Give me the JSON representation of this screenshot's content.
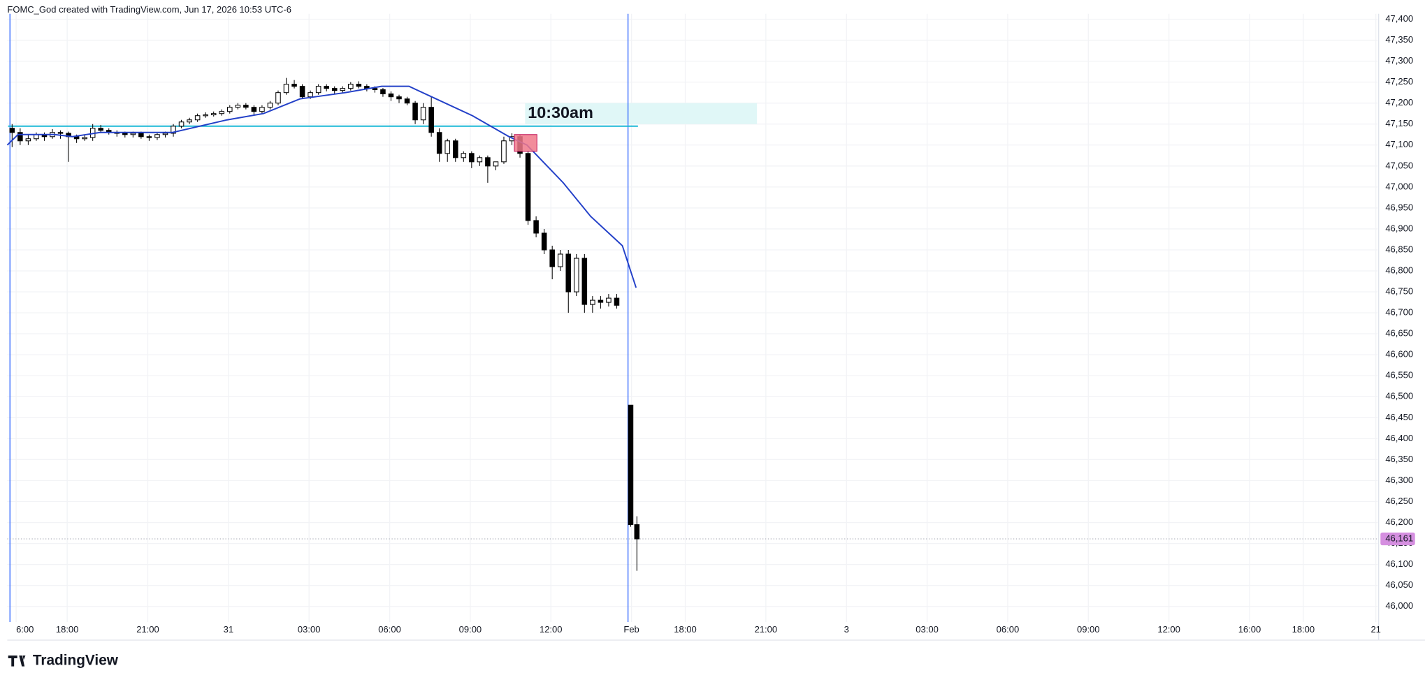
{
  "chart_data": {
    "type": "candlestick",
    "header": "FOMC_God created with TradingView.com, Jun 17, 2026 10:53 UTC-6",
    "watermark": "TradingView",
    "candles": {
      "up_color": "#ffffff",
      "down_color": "#000000",
      "x": [
        -2.05,
        -1.75,
        -1.45,
        -1.15,
        -0.85,
        -0.55,
        -0.25,
        0.05,
        0.35,
        0.65,
        0.95,
        1.25,
        1.55,
        1.85,
        2.15,
        2.45,
        2.75,
        3.05,
        3.35,
        3.65,
        3.95,
        4.25,
        4.55,
        4.85,
        5.15,
        5.45,
        5.75,
        6.05,
        6.35,
        6.65,
        6.95,
        7.25,
        7.55,
        7.85,
        8.15,
        8.45,
        8.75,
        9.05,
        9.35,
        9.65,
        9.95,
        10.25,
        10.55,
        10.85,
        11.15,
        11.45,
        11.75,
        12.05,
        12.35,
        12.65,
        12.95,
        13.25,
        13.55,
        13.85,
        14.15,
        14.45,
        14.75,
        15.05,
        15.35,
        15.65,
        15.95,
        16.25,
        16.55,
        16.85,
        17.15,
        17.45,
        17.75,
        18.05,
        18.35,
        18.65,
        18.95,
        19.25,
        19.55,
        19.85,
        20.15,
        20.45,
        20.97,
        21.2
      ],
      "open": [
        47140,
        47130,
        47110,
        47115,
        47125,
        47120,
        47130,
        47128,
        47120,
        47115,
        47118,
        47140,
        47135,
        47130,
        47128,
        47125,
        47128,
        47120,
        47118,
        47125,
        47128,
        47145,
        47155,
        47160,
        47170,
        47172,
        47175,
        47180,
        47190,
        47195,
        47190,
        47180,
        47190,
        47200,
        47225,
        47245,
        47240,
        47215,
        47225,
        47240,
        47235,
        47230,
        47235,
        47245,
        47240,
        47235,
        47232,
        47222,
        47215,
        47210,
        47200,
        47160,
        47190,
        47130,
        47080,
        47110,
        47070,
        47080,
        47060,
        47070,
        47050,
        47060,
        47110,
        47120,
        47080,
        46920,
        46890,
        46850,
        46810,
        46840,
        46750,
        46830,
        46720,
        46730,
        46725,
        46735,
        46480,
        46195
      ],
      "high": [
        47150,
        47140,
        47125,
        47130,
        47130,
        47138,
        47135,
        47132,
        47125,
        47125,
        47150,
        47148,
        47140,
        47135,
        47132,
        47132,
        47132,
        47125,
        47128,
        47132,
        47150,
        47160,
        47165,
        47175,
        47178,
        47180,
        47185,
        47195,
        47200,
        47200,
        47195,
        47195,
        47205,
        47230,
        47260,
        47255,
        47245,
        47230,
        47245,
        47245,
        47240,
        47240,
        47250,
        47252,
        47245,
        47240,
        47236,
        47228,
        47220,
        47215,
        47205,
        47200,
        47215,
        47140,
        47115,
        47115,
        47085,
        47085,
        47075,
        47075,
        47060,
        47120,
        47128,
        47125,
        47085,
        46930,
        46900,
        46860,
        46850,
        46850,
        46840,
        46840,
        46740,
        46740,
        46745,
        46745,
        46480,
        46215
      ],
      "low": [
        47095,
        47100,
        47100,
        47110,
        47110,
        47115,
        47115,
        47060,
        47105,
        47110,
        47110,
        47128,
        47125,
        47120,
        47118,
        47118,
        47115,
        47110,
        47112,
        47118,
        47120,
        47140,
        47150,
        47155,
        47165,
        47168,
        47170,
        47175,
        47185,
        47185,
        47170,
        47175,
        47185,
        47195,
        47220,
        47235,
        47210,
        47210,
        47220,
        47228,
        47222,
        47225,
        47230,
        47235,
        47228,
        47225,
        47215,
        47205,
        47200,
        47195,
        47150,
        47150,
        47120,
        47060,
        47060,
        47060,
        47060,
        47045,
        47050,
        47010,
        47040,
        47055,
        47100,
        47070,
        46910,
        46880,
        46840,
        46780,
        46800,
        46700,
        46740,
        46700,
        46700,
        46710,
        46715,
        46710,
        46190,
        46085
      ],
      "close": [
        47130,
        47110,
        47115,
        47125,
        47120,
        47130,
        47128,
        47120,
        47115,
        47118,
        47140,
        47135,
        47130,
        47128,
        47125,
        47128,
        47120,
        47118,
        47125,
        47128,
        47145,
        47155,
        47160,
        47170,
        47172,
        47175,
        47180,
        47190,
        47195,
        47190,
        47180,
        47190,
        47200,
        47225,
        47245,
        47240,
        47215,
        47225,
        47240,
        47235,
        47230,
        47235,
        47245,
        47240,
        47235,
        47232,
        47222,
        47215,
        47210,
        47200,
        47160,
        47190,
        47130,
        47080,
        47110,
        47070,
        47080,
        47060,
        47070,
        47050,
        47060,
        47110,
        47120,
        47080,
        46920,
        46890,
        46850,
        46810,
        46840,
        46750,
        46830,
        46720,
        46730,
        46725,
        46735,
        46718,
        46195,
        46161
      ]
    },
    "ema": {
      "color": "#2340c8",
      "x": [
        -2.23,
        -1.83,
        -0.47,
        0.2,
        1.22,
        3.92,
        5.95,
        7.3,
        8.66,
        10.35,
        11.7,
        12.72,
        13.73,
        15.08,
        16.44,
        17.11,
        18.46,
        19.48,
        20.66,
        21.17
      ],
      "values": [
        47100,
        47125,
        47125,
        47120,
        47130,
        47130,
        47160,
        47175,
        47210,
        47225,
        47240,
        47240,
        47210,
        47170,
        47120,
        47100,
        47010,
        46930,
        46860,
        46760
      ]
    },
    "drawings": {
      "level": 47145,
      "level_x": [
        -2.2,
        21.24
      ],
      "level_color": "#1ab8d6",
      "zone": [
        47150,
        47200
      ],
      "zone_x": [
        17.04,
        25.67
      ],
      "zone_color": "#e0f7f7",
      "zone_text": "10:30am",
      "box": [
        47085,
        47125
      ],
      "box_x": [
        16.64,
        17.48
      ],
      "box_color": "#f0788a",
      "vlines": [
        -2.13,
        20.87
      ],
      "vline_color": "#2962ff"
    },
    "last_price": {
      "value": 46161,
      "label": "46,161"
    },
    "last_price_color": "#d58fe0",
    "grid": true,
    "xlim": [
      -2.23,
      48.77
    ],
    "ylim": [
      45963,
      47413
    ],
    "xticks": [
      {
        "value": -1.9,
        "label": "6:00"
      },
      {
        "value": 0,
        "label": "18:00"
      },
      {
        "value": 3,
        "label": "21:00"
      },
      {
        "value": 6,
        "label": "31"
      },
      {
        "value": 9,
        "label": "03:00"
      },
      {
        "value": 12,
        "label": "06:00"
      },
      {
        "value": 15,
        "label": "09:00"
      },
      {
        "value": 18,
        "label": "12:00"
      },
      {
        "value": 21,
        "label": "Feb"
      },
      {
        "value": 23,
        "label": "18:00"
      },
      {
        "value": 26,
        "label": "21:00"
      },
      {
        "value": 29,
        "label": "3"
      },
      {
        "value": 32,
        "label": "03:00"
      },
      {
        "value": 35,
        "label": "06:00"
      },
      {
        "value": 38,
        "label": "09:00"
      },
      {
        "value": 41,
        "label": "12:00"
      },
      {
        "value": 44,
        "label": "16:00"
      },
      {
        "value": 46,
        "label": "18:00"
      },
      {
        "value": 48.7,
        "label": "21"
      }
    ],
    "yticks": [
      {
        "value": 46000,
        "label": "46,000"
      },
      {
        "value": 46050,
        "label": "46,050"
      },
      {
        "value": 46100,
        "label": "46,100"
      },
      {
        "value": 46150,
        "label": "46,150"
      },
      {
        "value": 46200,
        "label": "46,200"
      },
      {
        "value": 46250,
        "label": "46,250"
      },
      {
        "value": 46300,
        "label": "46,300"
      },
      {
        "value": 46350,
        "label": "46,350"
      },
      {
        "value": 46400,
        "label": "46,400"
      },
      {
        "value": 46450,
        "label": "46,450"
      },
      {
        "value": 46500,
        "label": "46,500"
      },
      {
        "value": 46550,
        "label": "46,550"
      },
      {
        "value": 46600,
        "label": "46,600"
      },
      {
        "value": 46650,
        "label": "46,650"
      },
      {
        "value": 46700,
        "label": "46,700"
      },
      {
        "value": 46750,
        "label": "46,750"
      },
      {
        "value": 46800,
        "label": "46,800"
      },
      {
        "value": 46850,
        "label": "46,850"
      },
      {
        "value": 46900,
        "label": "46,900"
      },
      {
        "value": 46950,
        "label": "46,950"
      },
      {
        "value": 47000,
        "label": "47,000"
      },
      {
        "value": 47050,
        "label": "47,050"
      },
      {
        "value": 47100,
        "label": "47,100"
      },
      {
        "value": 47150,
        "label": "47,150"
      },
      {
        "value": 47200,
        "label": "47,200"
      },
      {
        "value": 47250,
        "label": "47,250"
      },
      {
        "value": 47300,
        "label": "47,300"
      },
      {
        "value": 47350,
        "label": "47,350"
      },
      {
        "value": 47400,
        "label": "47,400"
      }
    ]
  }
}
